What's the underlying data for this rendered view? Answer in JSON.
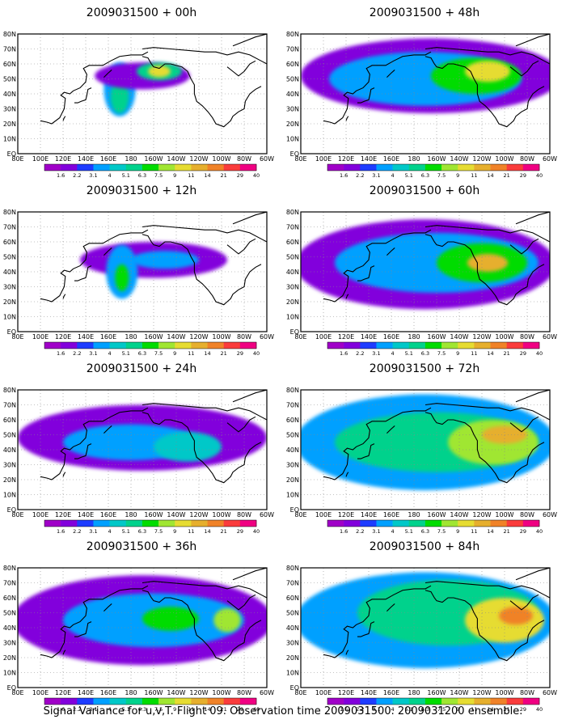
{
  "figure": {
    "caption": "Signal Variance for u,v,T. Flight 09. Observation time 2009031500. 2009031200 ensemble."
  },
  "chart_data": {
    "type": "heatmap",
    "x_ticks": [
      "80E",
      "100E",
      "120E",
      "140E",
      "160E",
      "180",
      "160W",
      "140W",
      "120W",
      "100W",
      "80W",
      "60W"
    ],
    "y_ticks": [
      "EQ",
      "10N",
      "20N",
      "30N",
      "40N",
      "50N",
      "60N",
      "70N",
      "80N"
    ],
    "lon_range_deg_east": [
      80,
      300
    ],
    "lat_range_deg": [
      0,
      80
    ],
    "colorbar": {
      "labels": [
        "1.6",
        "2.2",
        "3.1",
        "4",
        "5.1",
        "6.3",
        "7.5",
        "9",
        "11",
        "14",
        "21",
        "29",
        "40"
      ],
      "colors": [
        "#a000c8",
        "#8200dc",
        "#1e3cff",
        "#00a0ff",
        "#00c8c8",
        "#00d28c",
        "#00dc00",
        "#a0e632",
        "#e6dc32",
        "#e6af2d",
        "#f08228",
        "#fa3c3c",
        "#f00082"
      ]
    },
    "panels": [
      {
        "title": "2009031500 + 00h",
        "blobs": [
          {
            "lon": 170,
            "lat": 43,
            "rx": 14,
            "ry": 18,
            "level": 3
          },
          {
            "lon": 170,
            "lat": 38,
            "rx": 8,
            "ry": 11,
            "level": 5
          },
          {
            "lon": 190,
            "lat": 52,
            "rx": 42,
            "ry": 9,
            "level": 1
          },
          {
            "lon": 205,
            "lat": 55,
            "rx": 20,
            "ry": 6,
            "level": 5
          },
          {
            "lon": 205,
            "lat": 55,
            "rx": 10,
            "ry": 4,
            "level": 8
          }
        ]
      },
      {
        "title": "2009031500 + 48h",
        "blobs": [
          {
            "lon": 195,
            "lat": 52,
            "rx": 115,
            "ry": 25,
            "level": 1
          },
          {
            "lon": 190,
            "lat": 50,
            "rx": 85,
            "ry": 18,
            "level": 3
          },
          {
            "lon": 235,
            "lat": 52,
            "rx": 40,
            "ry": 12,
            "level": 6
          },
          {
            "lon": 245,
            "lat": 55,
            "rx": 20,
            "ry": 7,
            "level": 8
          }
        ]
      },
      {
        "title": "2009031500 + 12h",
        "blobs": [
          {
            "lon": 200,
            "lat": 48,
            "rx": 65,
            "ry": 12,
            "level": 1
          },
          {
            "lon": 172,
            "lat": 40,
            "rx": 14,
            "ry": 18,
            "level": 3
          },
          {
            "lon": 172,
            "lat": 36,
            "rx": 6,
            "ry": 9,
            "level": 6
          },
          {
            "lon": 210,
            "lat": 48,
            "rx": 30,
            "ry": 6,
            "level": 3
          }
        ]
      },
      {
        "title": "2009031500 + 60h",
        "blobs": [
          {
            "lon": 190,
            "lat": 45,
            "rx": 115,
            "ry": 30,
            "level": 1
          },
          {
            "lon": 200,
            "lat": 46,
            "rx": 90,
            "ry": 20,
            "level": 3
          },
          {
            "lon": 240,
            "lat": 46,
            "rx": 40,
            "ry": 13,
            "level": 6
          },
          {
            "lon": 245,
            "lat": 46,
            "rx": 18,
            "ry": 6,
            "level": 9
          }
        ]
      },
      {
        "title": "2009031500 + 24h",
        "blobs": [
          {
            "lon": 190,
            "lat": 48,
            "rx": 110,
            "ry": 22,
            "level": 1
          },
          {
            "lon": 180,
            "lat": 45,
            "rx": 60,
            "ry": 12,
            "level": 3
          },
          {
            "lon": 230,
            "lat": 42,
            "rx": 30,
            "ry": 10,
            "level": 4
          }
        ]
      },
      {
        "title": "2009031500 + 72h",
        "blobs": [
          {
            "lon": 190,
            "lat": 45,
            "rx": 115,
            "ry": 32,
            "level": 3
          },
          {
            "lon": 200,
            "lat": 45,
            "rx": 90,
            "ry": 20,
            "level": 5
          },
          {
            "lon": 250,
            "lat": 45,
            "rx": 40,
            "ry": 15,
            "level": 7
          },
          {
            "lon": 260,
            "lat": 50,
            "rx": 20,
            "ry": 6,
            "level": 9
          }
        ]
      },
      {
        "title": "2009031500 + 36h",
        "blobs": [
          {
            "lon": 190,
            "lat": 45,
            "rx": 115,
            "ry": 30,
            "level": 1
          },
          {
            "lon": 200,
            "lat": 45,
            "rx": 80,
            "ry": 18,
            "level": 3
          },
          {
            "lon": 215,
            "lat": 46,
            "rx": 25,
            "ry": 8,
            "level": 6
          },
          {
            "lon": 265,
            "lat": 45,
            "rx": 12,
            "ry": 8,
            "level": 7
          }
        ]
      },
      {
        "title": "2009031500 + 84h",
        "blobs": [
          {
            "lon": 190,
            "lat": 45,
            "rx": 115,
            "ry": 32,
            "level": 3
          },
          {
            "lon": 210,
            "lat": 50,
            "rx": 80,
            "ry": 22,
            "level": 5
          },
          {
            "lon": 260,
            "lat": 45,
            "rx": 35,
            "ry": 15,
            "level": 8
          },
          {
            "lon": 270,
            "lat": 48,
            "rx": 15,
            "ry": 6,
            "level": 10
          }
        ]
      }
    ]
  }
}
